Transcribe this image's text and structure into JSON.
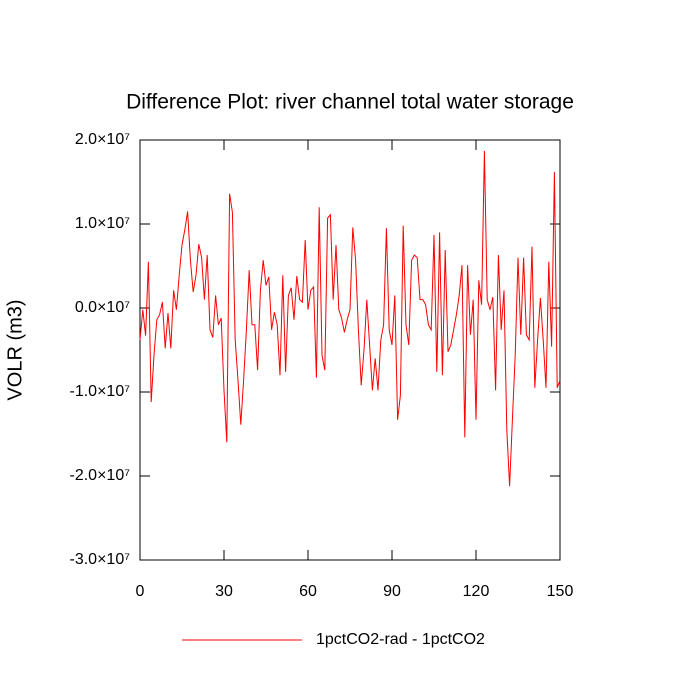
{
  "chart_data": {
    "type": "line",
    "title": "Difference Plot: river channel total water storage",
    "y_label": "VOLR  (m3)",
    "xlim": [
      0,
      150
    ],
    "xticks": [
      0,
      30,
      60,
      90,
      120,
      150
    ],
    "ylim": [
      -30000000,
      20000000
    ],
    "yticks": [
      {
        "value": -30000000,
        "label": "-3.0×10⁷"
      },
      {
        "value": -20000000,
        "label": "-2.0×10⁷"
      },
      {
        "value": -10000000,
        "label": "-1.0×10⁷"
      },
      {
        "value": 0,
        "label": "0.0×10⁷"
      },
      {
        "value": 10000000,
        "label": "1.0×10⁷"
      },
      {
        "value": 20000000,
        "label": "2.0×10⁷"
      }
    ],
    "legend": "bottom",
    "series": [
      {
        "name": "1pctCO2-rad - 1pctCO2",
        "color": "#ff0000",
        "x": [
          0,
          1,
          2,
          3,
          4,
          5,
          6,
          7,
          8,
          9,
          10,
          11,
          12,
          13,
          14,
          15,
          16,
          17,
          18,
          19,
          20,
          21,
          22,
          23,
          24,
          25,
          26,
          27,
          28,
          29,
          30,
          31,
          32,
          33,
          34,
          35,
          36,
          37,
          38,
          39,
          40,
          41,
          42,
          43,
          44,
          45,
          46,
          47,
          48,
          49,
          50,
          51,
          52,
          53,
          54,
          55,
          56,
          57,
          58,
          59,
          60,
          61,
          62,
          63,
          64,
          65,
          66,
          67,
          68,
          69,
          70,
          71,
          72,
          73,
          74,
          75,
          76,
          77,
          78,
          79,
          80,
          81,
          82,
          83,
          84,
          85,
          86,
          87,
          88,
          89,
          90,
          91,
          92,
          93,
          94,
          95,
          96,
          97,
          98,
          99,
          100,
          101,
          102,
          103,
          104,
          105,
          106,
          107,
          108,
          109,
          110,
          111,
          112,
          113,
          114,
          115,
          116,
          117,
          118,
          119,
          120,
          121,
          122,
          123,
          124,
          125,
          126,
          127,
          128,
          129,
          130,
          131,
          132,
          133,
          134,
          135,
          136,
          137,
          138,
          139,
          140,
          141,
          142,
          143,
          144,
          145,
          146,
          147,
          148,
          149,
          150
        ],
        "values": [
          -3800000,
          -200000,
          -3300000,
          5500000,
          -11200000,
          -5600000,
          -1400000,
          -800000,
          700000,
          -4800000,
          -600000,
          -4800000,
          2100000,
          -200000,
          3900000,
          7500000,
          9300000,
          11500000,
          5700000,
          1900000,
          3900000,
          7600000,
          6000000,
          1000000,
          6300000,
          -2600000,
          -3500000,
          1500000,
          -2000000,
          -1200000,
          -9800000,
          -16000000,
          13600000,
          11400000,
          -3800000,
          -8600000,
          -13900000,
          -8600000,
          -2600000,
          4500000,
          -2000000,
          -2000000,
          -7400000,
          2100000,
          5700000,
          2700000,
          3700000,
          -2600000,
          -500000,
          -2000000,
          -8000000,
          3900000,
          -7600000,
          1500000,
          2400000,
          -1400000,
          3800000,
          1000000,
          700000,
          8100000,
          -200000,
          2100000,
          2500000,
          -8300000,
          12000000,
          -5600000,
          -7400000,
          10700000,
          11100000,
          1000000,
          7500000,
          -200000,
          -1200000,
          -2900000,
          -1400000,
          -200000,
          9600000,
          5700000,
          -2600000,
          -9200000,
          -5000000,
          1000000,
          -4400000,
          -9800000,
          -6000000,
          -9800000,
          -3800000,
          -2000000,
          9500000,
          -2600000,
          -4400000,
          1500000,
          -13300000,
          -10400000,
          9800000,
          -2000000,
          -4400000,
          5700000,
          6300000,
          6000000,
          1000000,
          1000000,
          400000,
          -2000000,
          -2600000,
          8700000,
          -7600000,
          9000000,
          -8000000,
          6900000,
          -5200000,
          -4400000,
          -2600000,
          -800000,
          1500000,
          5100000,
          -15400000,
          5100000,
          -3200000,
          1000000,
          -13300000,
          3300000,
          400000,
          18700000,
          1000000,
          -200000,
          1300000,
          -9800000,
          6300000,
          -2600000,
          2100000,
          -14500000,
          -21200000,
          -13300000,
          -5600000,
          6000000,
          -3200000,
          6000000,
          -3200000,
          -3800000,
          7300000,
          -9500000,
          -3800000,
          1200000,
          -3800000,
          -9500000,
          5500000,
          -4600000,
          16200000,
          -9500000,
          -8600000
        ]
      }
    ]
  }
}
